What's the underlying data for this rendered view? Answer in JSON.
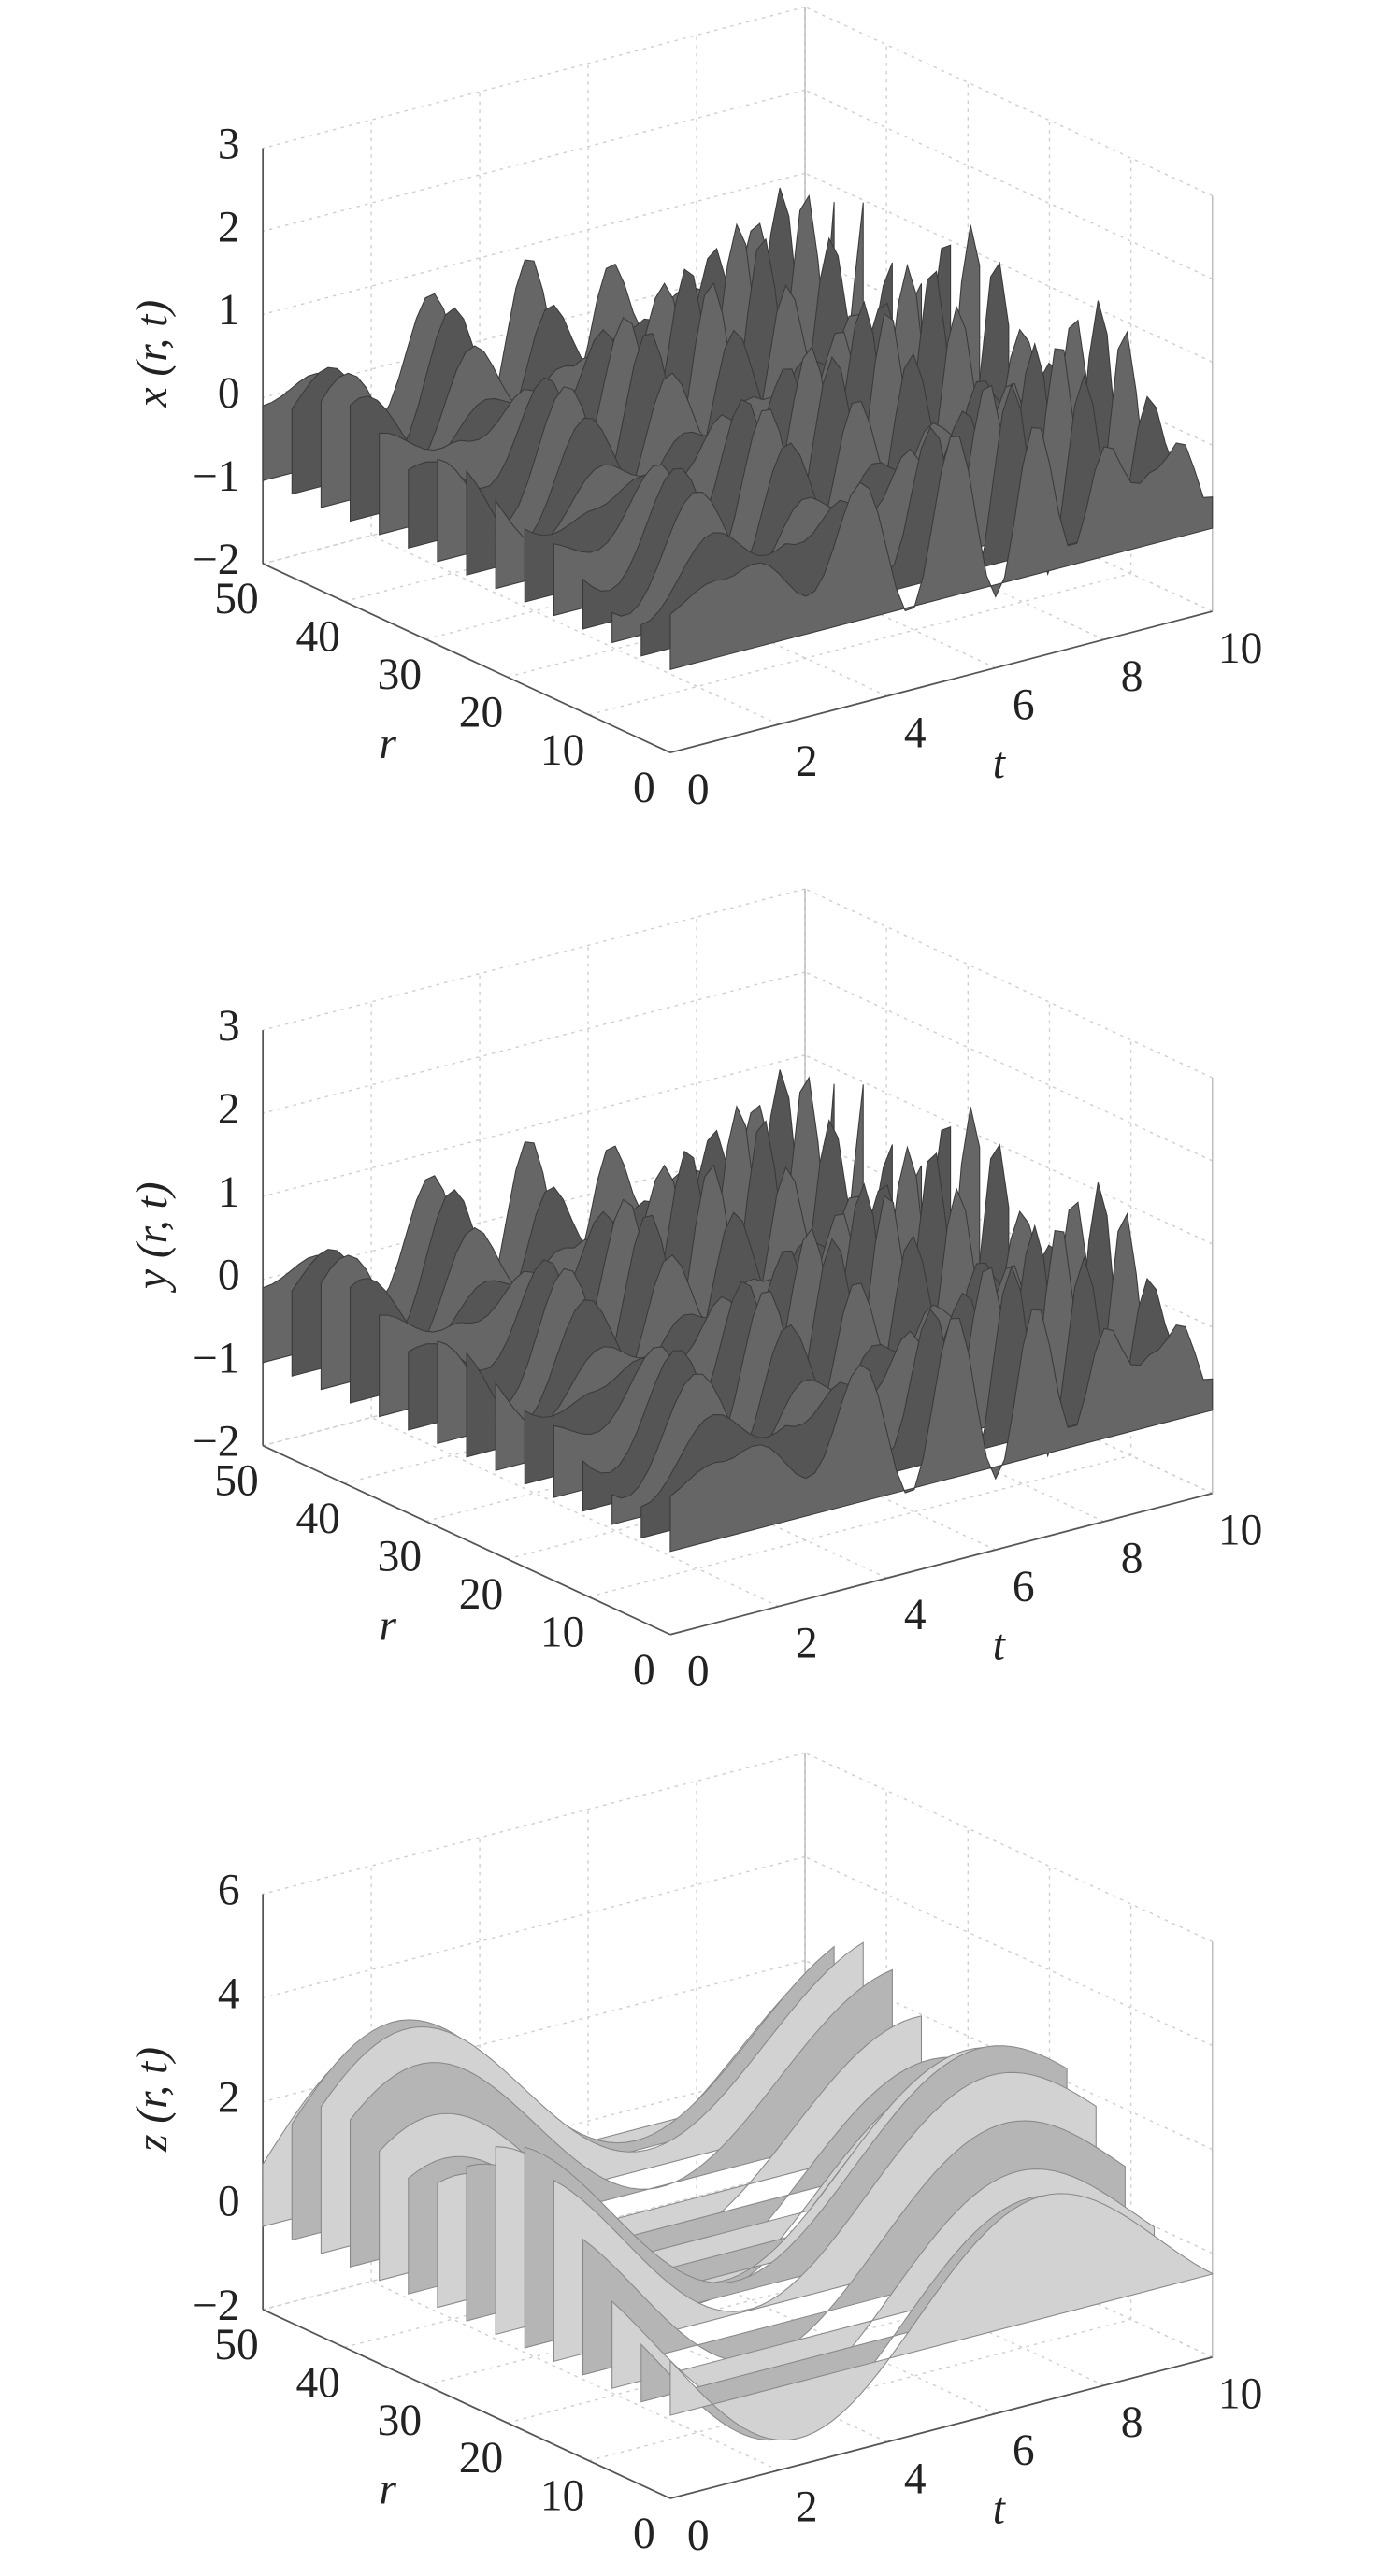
{
  "chart_data": [
    {
      "type": "surface",
      "zlabel": "x (r, t)",
      "rlabel": "r",
      "tlabel": "t",
      "rlim": [
        0,
        50
      ],
      "tlim": [
        0,
        10
      ],
      "zlim": [
        -2,
        3
      ],
      "rticks": [
        0,
        10,
        20,
        30,
        40,
        50
      ],
      "tticks": [
        0,
        2,
        4,
        6,
        8,
        10
      ],
      "zticks": [
        {
          "value": -2,
          "label": "−2"
        },
        {
          "value": -1,
          "label": "−1"
        },
        0,
        1,
        2,
        3
      ],
      "grid": true
    },
    {
      "type": "surface",
      "zlabel": "y (r, t)",
      "rlabel": "r",
      "tlabel": "t",
      "rlim": [
        0,
        50
      ],
      "tlim": [
        0,
        10
      ],
      "zlim": [
        -2,
        3
      ],
      "rticks": [
        0,
        10,
        20,
        30,
        40,
        50
      ],
      "tticks": [
        0,
        2,
        4,
        6,
        8,
        10
      ],
      "zticks": [
        {
          "value": -2,
          "label": "−2"
        },
        {
          "value": -1,
          "label": "−1"
        },
        0,
        1,
        2,
        3
      ],
      "grid": true
    },
    {
      "type": "surface",
      "zlabel": "z (r, t)",
      "rlabel": "r",
      "tlabel": "t",
      "rlim": [
        0,
        50
      ],
      "tlim": [
        0,
        10
      ],
      "zlim": [
        -2,
        6
      ],
      "rticks": [
        0,
        10,
        20,
        30,
        40,
        50
      ],
      "tticks": [
        0,
        2,
        4,
        6,
        8,
        10
      ],
      "zticks": [
        {
          "value": -2,
          "label": "−2"
        },
        0,
        2,
        4,
        6
      ],
      "grid": true
    }
  ]
}
